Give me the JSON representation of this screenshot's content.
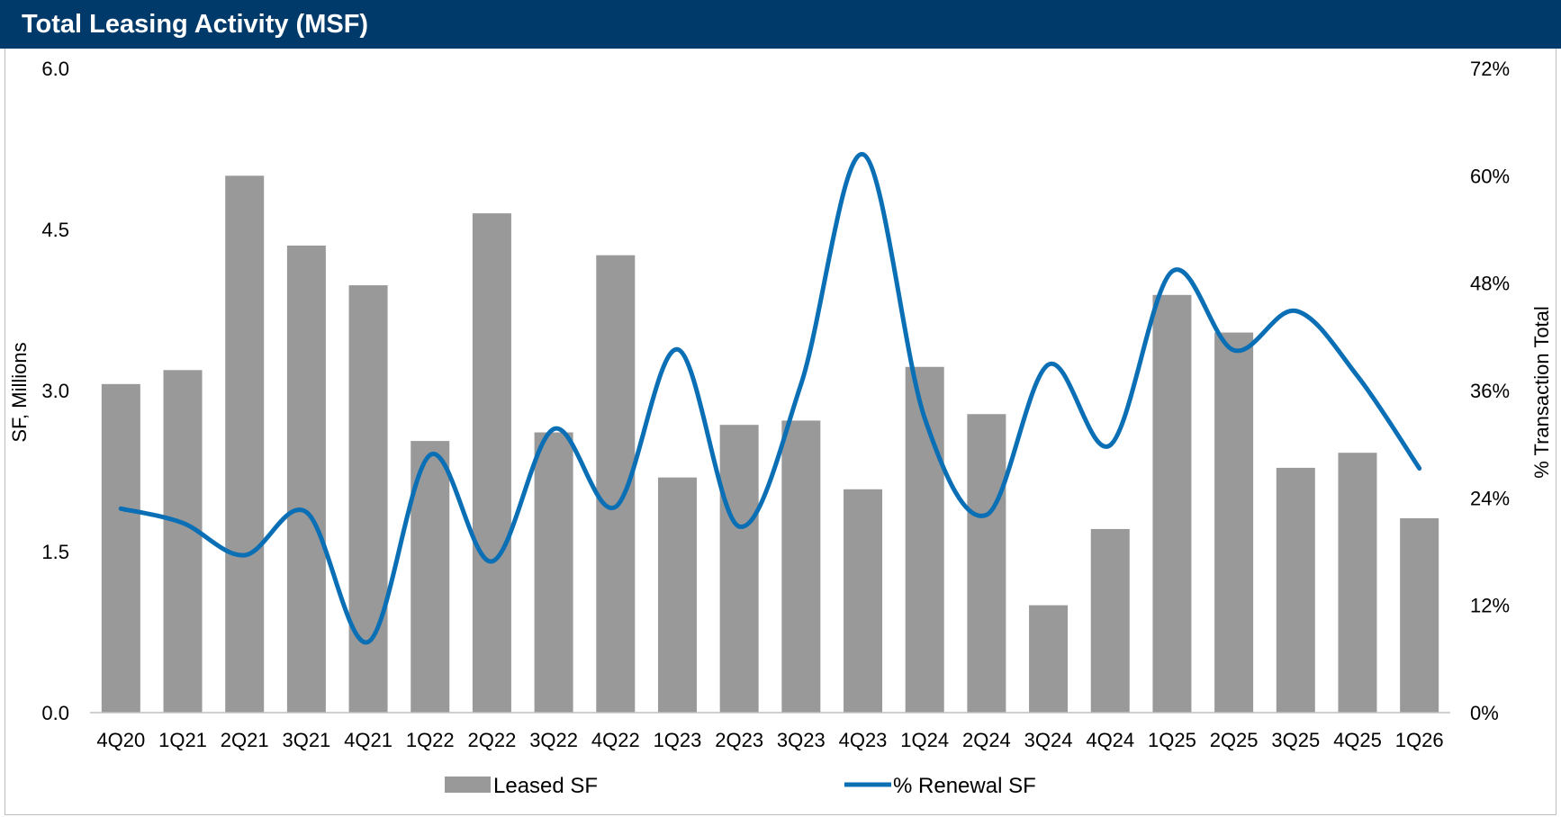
{
  "header": {
    "title": "Total Leasing Activity (MSF)"
  },
  "colors": {
    "header_bg": "#003a6b",
    "bar": "#999999",
    "line": "#0a6fb5"
  },
  "chart_data": {
    "type": "bar",
    "title": "Total Leasing Activity (MSF)",
    "categories": [
      "4Q20",
      "1Q21",
      "2Q21",
      "3Q21",
      "4Q21",
      "1Q22",
      "2Q22",
      "3Q22",
      "4Q22",
      "1Q23",
      "2Q23",
      "3Q23",
      "4Q23",
      "1Q24",
      "2Q24",
      "3Q24",
      "4Q24",
      "1Q25",
      "2Q25",
      "3Q25",
      "4Q25",
      "1Q26"
    ],
    "ylabel": "SF, Millions",
    "y2label": "% Transaction Total",
    "ylim": [
      0,
      6
    ],
    "y2lim": [
      0,
      72
    ],
    "yticks": [
      "0.0",
      "1.5",
      "3.0",
      "4.5",
      "6.0"
    ],
    "y2ticks": [
      "0%",
      "12%",
      "24%",
      "36%",
      "48%",
      "60%",
      "72%"
    ],
    "grid": false,
    "legend_position": "bottom",
    "series": [
      {
        "name": "Leased SF",
        "type": "bar",
        "axis": "left",
        "values": [
          3.06,
          3.19,
          5.0,
          4.35,
          3.98,
          2.53,
          4.65,
          2.61,
          4.26,
          2.19,
          2.68,
          2.72,
          2.08,
          3.22,
          2.78,
          1.0,
          1.71,
          3.89,
          3.54,
          2.28,
          2.42,
          1.81
        ]
      },
      {
        "name": "% Renewal SF",
        "type": "line",
        "axis": "right",
        "smooth": true,
        "values": [
          22.8,
          21.2,
          17.6,
          22.4,
          7.9,
          28.8,
          16.9,
          31.7,
          23.0,
          40.6,
          20.8,
          36.7,
          62.4,
          32.9,
          22.1,
          38.9,
          29.9,
          49.3,
          40.5,
          44.9,
          37.6,
          27.3
        ]
      }
    ]
  }
}
